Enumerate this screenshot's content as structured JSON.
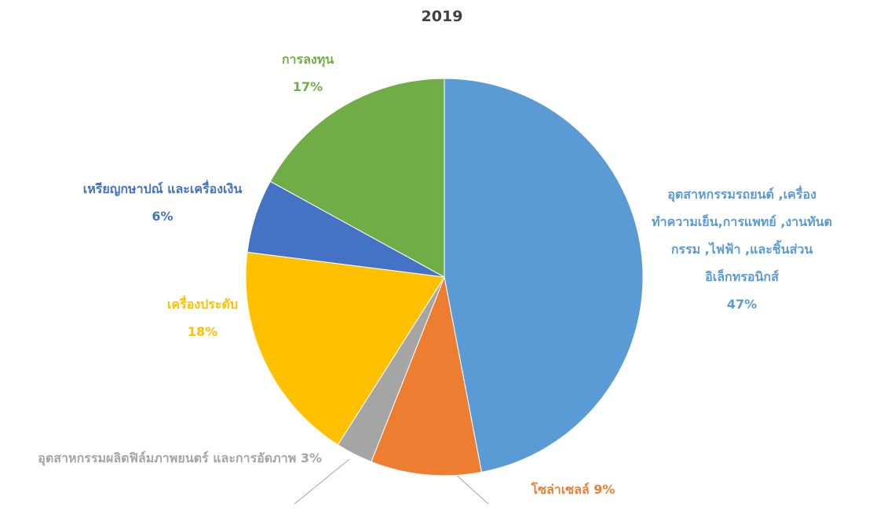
{
  "chart_data": {
    "type": "pie",
    "title": "2019",
    "categories": [
      "อุตสาหกรรมรถยนต์ ,เครื่องทำความเย็น,การแพทย์ ,งานทันตกรรม ,ไฟฟ้า ,และชิ้นส่วนอิเล็กทรอนิกส์",
      "โซล่าเซลล์",
      "อุตสาหกรรมผลิตฟิล์มภาพยนตร์ และการอัดภาพ",
      "เครื่องประดับ",
      "เหรียญกษาปณ์ และเครื่องเงิน",
      "การลงทุน"
    ],
    "values": [
      47,
      9,
      3,
      18,
      6,
      17
    ],
    "value_labels": [
      "47%",
      "9%",
      "3%",
      "18%",
      "6%",
      "17%"
    ],
    "colors": [
      "#5b9bd5",
      "#ed7d31",
      "#a5a5a5",
      "#ffc000",
      "#4472c4",
      "#70ad47"
    ]
  }
}
